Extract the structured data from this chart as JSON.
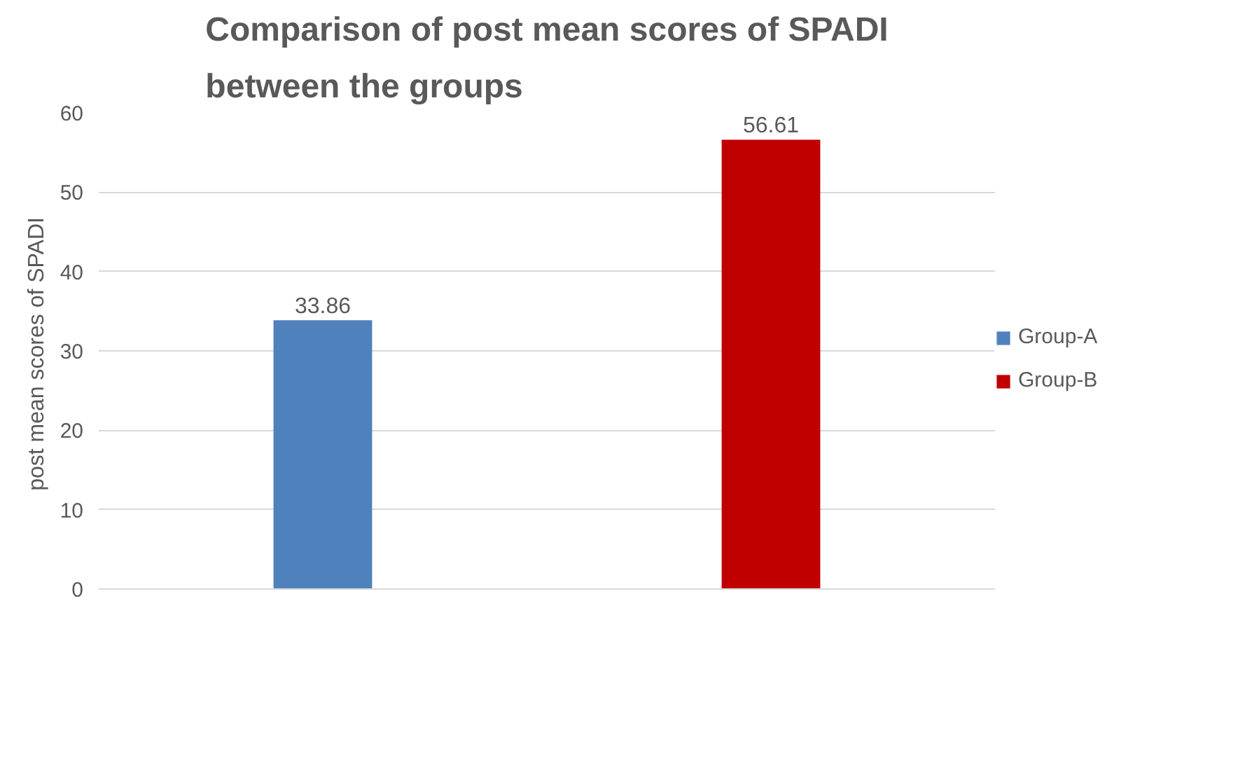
{
  "chart_data": {
    "type": "bar",
    "title": "Comparison of post mean scores of SPADI between the groups",
    "ylabel": "post  mean scores of SPADI",
    "categories": [
      null,
      null
    ],
    "series": [
      {
        "name": "Group-A",
        "color": "#4f81bd",
        "values": [
          33.86,
          null
        ]
      },
      {
        "name": "Group-B",
        "color": "#c00000",
        "values": [
          null,
          56.61
        ]
      }
    ],
    "ylim": [
      0,
      60
    ],
    "yticks": [
      0,
      10,
      20,
      30,
      40,
      50,
      60
    ],
    "grid": "y",
    "legend": "right",
    "data_labels": true
  }
}
